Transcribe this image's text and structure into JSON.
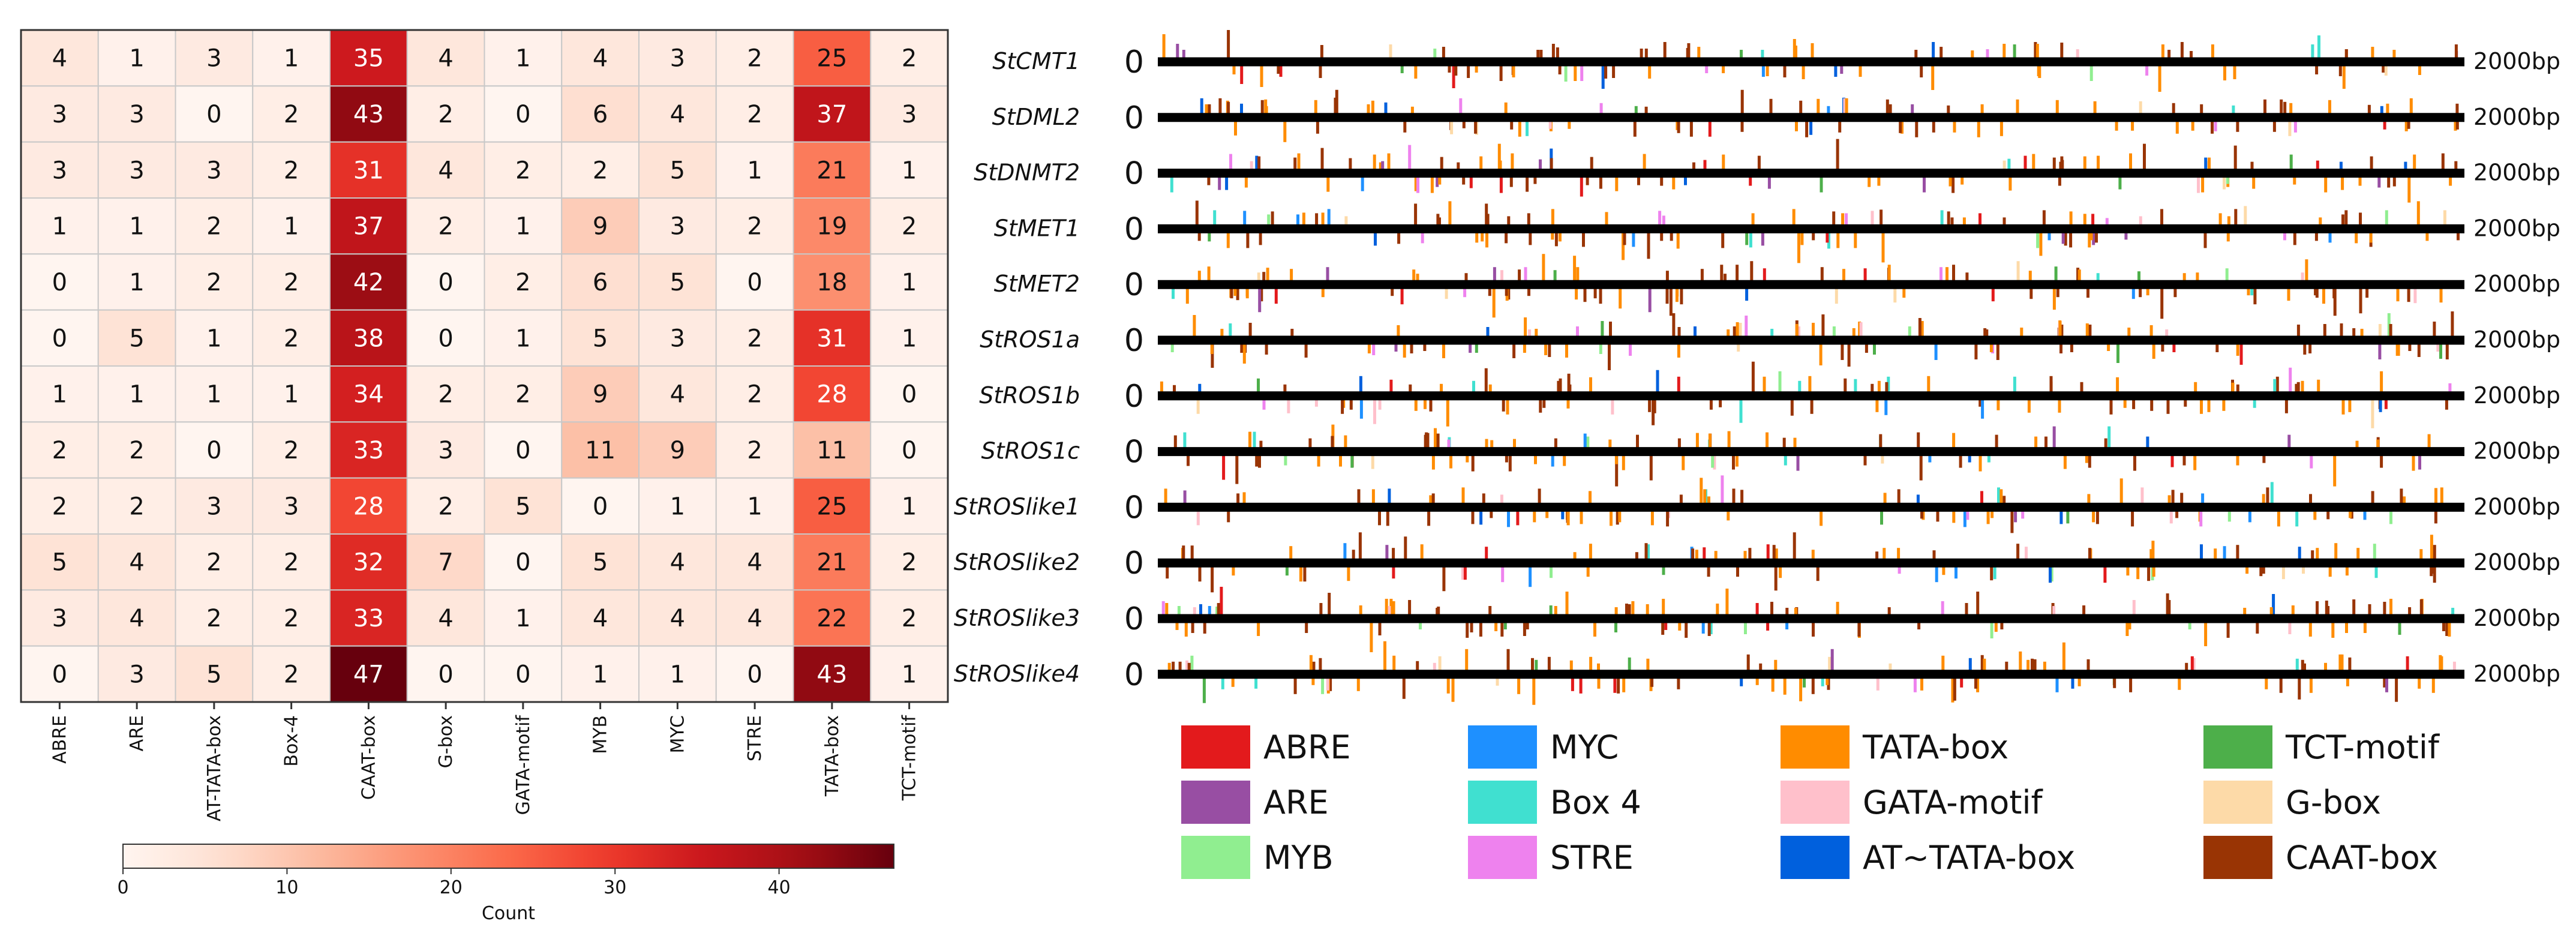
{
  "chart_data": [
    {
      "type": "heatmap",
      "columns": [
        "ABRE",
        "ARE",
        "AT-TATA-box",
        "Box-4",
        "CAAT-box",
        "G-box",
        "GATA-motif",
        "MYB",
        "MYC",
        "STRE",
        "TATA-box",
        "TCT-motif"
      ],
      "rows": [
        "StCMT1",
        "StDML2",
        "StDNMT2",
        "StMET1",
        "StMET2",
        "StROS1a",
        "StROS1b",
        "StROS1c",
        "StROSlike1",
        "StROSlike2",
        "StROSlike3",
        "StROSlike4"
      ],
      "show_row_labels": false,
      "values": [
        [
          4,
          1,
          3,
          1,
          35,
          4,
          1,
          4,
          3,
          2,
          25,
          2
        ],
        [
          3,
          3,
          0,
          2,
          43,
          2,
          0,
          6,
          4,
          2,
          37,
          3
        ],
        [
          3,
          3,
          3,
          2,
          31,
          4,
          2,
          2,
          5,
          1,
          21,
          1
        ],
        [
          1,
          1,
          2,
          1,
          37,
          2,
          1,
          9,
          3,
          2,
          19,
          2
        ],
        [
          0,
          1,
          2,
          2,
          42,
          0,
          2,
          6,
          5,
          0,
          18,
          1
        ],
        [
          0,
          5,
          1,
          2,
          38,
          0,
          1,
          5,
          3,
          2,
          31,
          1
        ],
        [
          1,
          1,
          1,
          1,
          34,
          2,
          2,
          9,
          4,
          2,
          28,
          0
        ],
        [
          2,
          2,
          0,
          2,
          33,
          3,
          0,
          11,
          9,
          2,
          11,
          0
        ],
        [
          2,
          2,
          3,
          3,
          28,
          2,
          5,
          0,
          1,
          1,
          25,
          1
        ],
        [
          5,
          4,
          2,
          2,
          32,
          7,
          0,
          5,
          4,
          4,
          21,
          2
        ],
        [
          3,
          4,
          2,
          2,
          33,
          4,
          1,
          4,
          4,
          4,
          22,
          2
        ],
        [
          0,
          3,
          5,
          2,
          47,
          0,
          0,
          1,
          1,
          0,
          43,
          1
        ]
      ],
      "colorbar": {
        "label": "Count",
        "min": 0,
        "max": 47,
        "ticks": [
          0,
          10,
          20,
          30,
          40
        ],
        "colormap": "Reds",
        "low_color": "#fff5f0",
        "high_color": "#67000d"
      }
    },
    {
      "type": "scatter",
      "description_kind": "promoter element positions",
      "genes": [
        "StCMT1",
        "StDML2",
        "StDNMT2",
        "StMET1",
        "StMET2",
        "StROS1a",
        "StROS1b",
        "StROS1c",
        "StROSlike1",
        "StROSlike2",
        "StROSlike3",
        "StROSlike4"
      ],
      "start_label": "0",
      "end_label": "2000bp",
      "xlim": [
        0,
        2000
      ],
      "legend": [
        {
          "name": "ABRE",
          "color": "#e31a1c"
        },
        {
          "name": "ARE",
          "color": "#984ea3"
        },
        {
          "name": "MYB",
          "color": "#90ee90"
        },
        {
          "name": "MYC",
          "color": "#1e90ff"
        },
        {
          "name": "Box 4",
          "color": "#40e0d0"
        },
        {
          "name": "STRE",
          "color": "#ee82ee"
        },
        {
          "name": "TATA-box",
          "color": "#ff8c00"
        },
        {
          "name": "GATA-motif",
          "color": "#ffc0cb"
        },
        {
          "name": "AT~TATA-box",
          "color": "#0060dd"
        },
        {
          "name": "TCT-motif",
          "color": "#4daf4a"
        },
        {
          "name": "G-box",
          "color": "#fddaa8"
        },
        {
          "name": "CAAT-box",
          "color": "#993404"
        }
      ]
    }
  ]
}
